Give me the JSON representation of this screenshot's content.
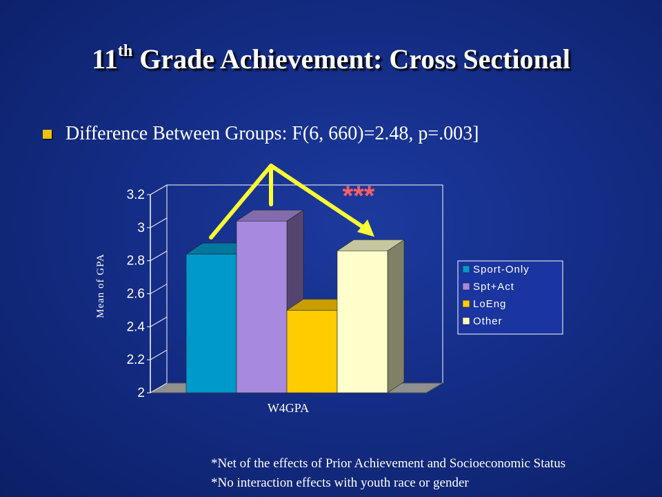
{
  "slide": {
    "title_main": "11",
    "title_sup": "th",
    "title_rest": " Grade Achievement: Cross Sectional",
    "bullet": "Difference Between Groups: F(6, 660)=2.48, p=.003]",
    "significance": "***",
    "footnotes": [
      "*Net of  the effects of Prior Achievement and Socioeconomic Status",
      "*No interaction effects with youth race or gender"
    ]
  },
  "colors": {
    "bullet": "#f2c200",
    "arrow": "#ffff33",
    "stars": "#ff6060",
    "axis_text": "#ffffff",
    "legend_bg": "#1a35a0"
  },
  "chart_data": {
    "type": "bar",
    "style": "3d-clustered",
    "categories": [
      "W4GPA"
    ],
    "xlabel": "W4GPA",
    "ylabel": "Mean of GPA",
    "ylim": [
      2,
      3.2
    ],
    "yticks": [
      "2",
      "2.2",
      "2.4",
      "2.6",
      "2.8",
      "3",
      "3.2"
    ],
    "grid": false,
    "legend_position": "right",
    "series": [
      {
        "name": "Sport-Only",
        "values": [
          2.84
        ],
        "color": "#0099cc"
      },
      {
        "name": "Spt+Act",
        "values": [
          3.04
        ],
        "color": "#a78adf"
      },
      {
        "name": "LoEng",
        "values": [
          2.5
        ],
        "color": "#ffcc00"
      },
      {
        "name": "Other",
        "values": [
          2.86
        ],
        "color": "#ffffcc"
      }
    ]
  }
}
